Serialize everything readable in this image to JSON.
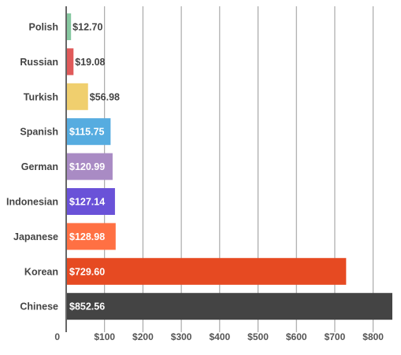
{
  "chart_data": {
    "type": "bar",
    "orientation": "horizontal",
    "title": "",
    "xlabel": "",
    "ylabel": "",
    "categories": [
      "Polish",
      "Russian",
      "Turkish",
      "Spanish",
      "German",
      "Indonesian",
      "Japanese",
      "Korean",
      "Chinese"
    ],
    "values": [
      12.7,
      19.08,
      56.98,
      115.75,
      120.99,
      127.14,
      128.98,
      729.6,
      852.56
    ],
    "value_labels": [
      "$12.70",
      "$19.08",
      "$56.98",
      "$115.75",
      "$120.99",
      "$127.14",
      "$128.98",
      "$729.60",
      "$852.56"
    ],
    "colors": [
      "#86c8a0",
      "#e05a5a",
      "#f0cf6e",
      "#56ace0",
      "#a98bc4",
      "#6a52d8",
      "#ff7043",
      "#e64a22",
      "#444444"
    ],
    "xlim": [
      0,
      850
    ],
    "x_ticks": [
      0,
      100,
      200,
      300,
      400,
      500,
      600,
      700,
      800
    ],
    "x_tick_labels": [
      "0",
      "$100",
      "$200",
      "$300",
      "$400",
      "$500",
      "$600",
      "$700",
      "$800"
    ],
    "grid": true,
    "legend": "none"
  }
}
